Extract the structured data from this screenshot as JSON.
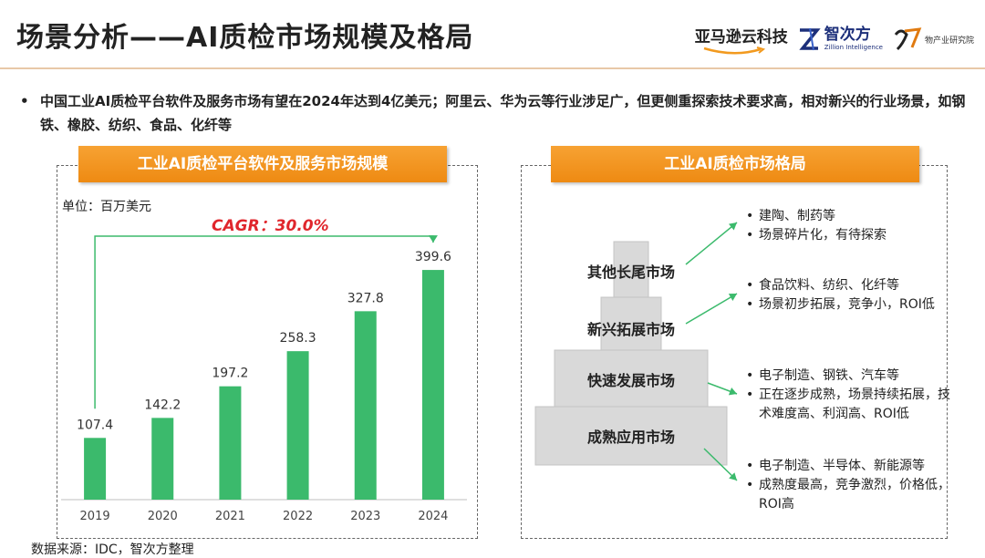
{
  "header": {
    "title": "场景分析——AI质检市场规模及格局",
    "logo_amazon": "亚马逊云科技",
    "logo_zc_cn": "智次方",
    "logo_zc_en": "Zillion Intelligence",
    "logo_inst": "物产业研究院"
  },
  "bullet": "中国工业AI质检平台软件及服务市场有望在2024年达到4亿美元；阿里云、华为云等行业涉足广，但更侧重探索技术要求高，相对新兴的行业场景，如钢铁、橡胶、纺织、食品、化纤等",
  "left_panel": {
    "header": "工业AI质检平台软件及服务市场规模",
    "unit": "单位：百万美元",
    "cagr": "CAGR：30.0%"
  },
  "chart_data": {
    "type": "bar",
    "categories": [
      "2019",
      "2020",
      "2021",
      "2022",
      "2023",
      "2024"
    ],
    "values": [
      107.4,
      142.2,
      197.2,
      258.3,
      327.8,
      399.6
    ],
    "value_labels": [
      "107.4",
      "142.2",
      "197.2",
      "258.3",
      "327.8",
      "399.6"
    ],
    "ylim": [
      0,
      460
    ],
    "bar_color": "#3bba6c",
    "annotation": "CAGR：30.0%",
    "unit": "单位：百万美元"
  },
  "right_panel": {
    "header": "工业AI质检市场格局",
    "tiers": [
      "其他长尾市场",
      "新兴拓展市场",
      "快速发展市场",
      "成熟应用市场"
    ],
    "notes": [
      [
        "建陶、制药等",
        "场景碎片化，有待探索"
      ],
      [
        "食品饮料、纺织、化纤等",
        "场景初步拓展，竞争小，ROI低"
      ],
      [
        "电子制造、钢铁、汽车等",
        "正在逐步成熟，场景持续拓展，技术难度高、利润高、ROI低"
      ],
      [
        "电子制造、半导体、新能源等",
        "成熟度最高，竞争激烈，价格低，ROI高"
      ]
    ],
    "arrow_color": "#3bba6c",
    "tier_fill": "#d9d9d9"
  },
  "footer": {
    "source": "数据来源：IDC，智次方整理"
  }
}
